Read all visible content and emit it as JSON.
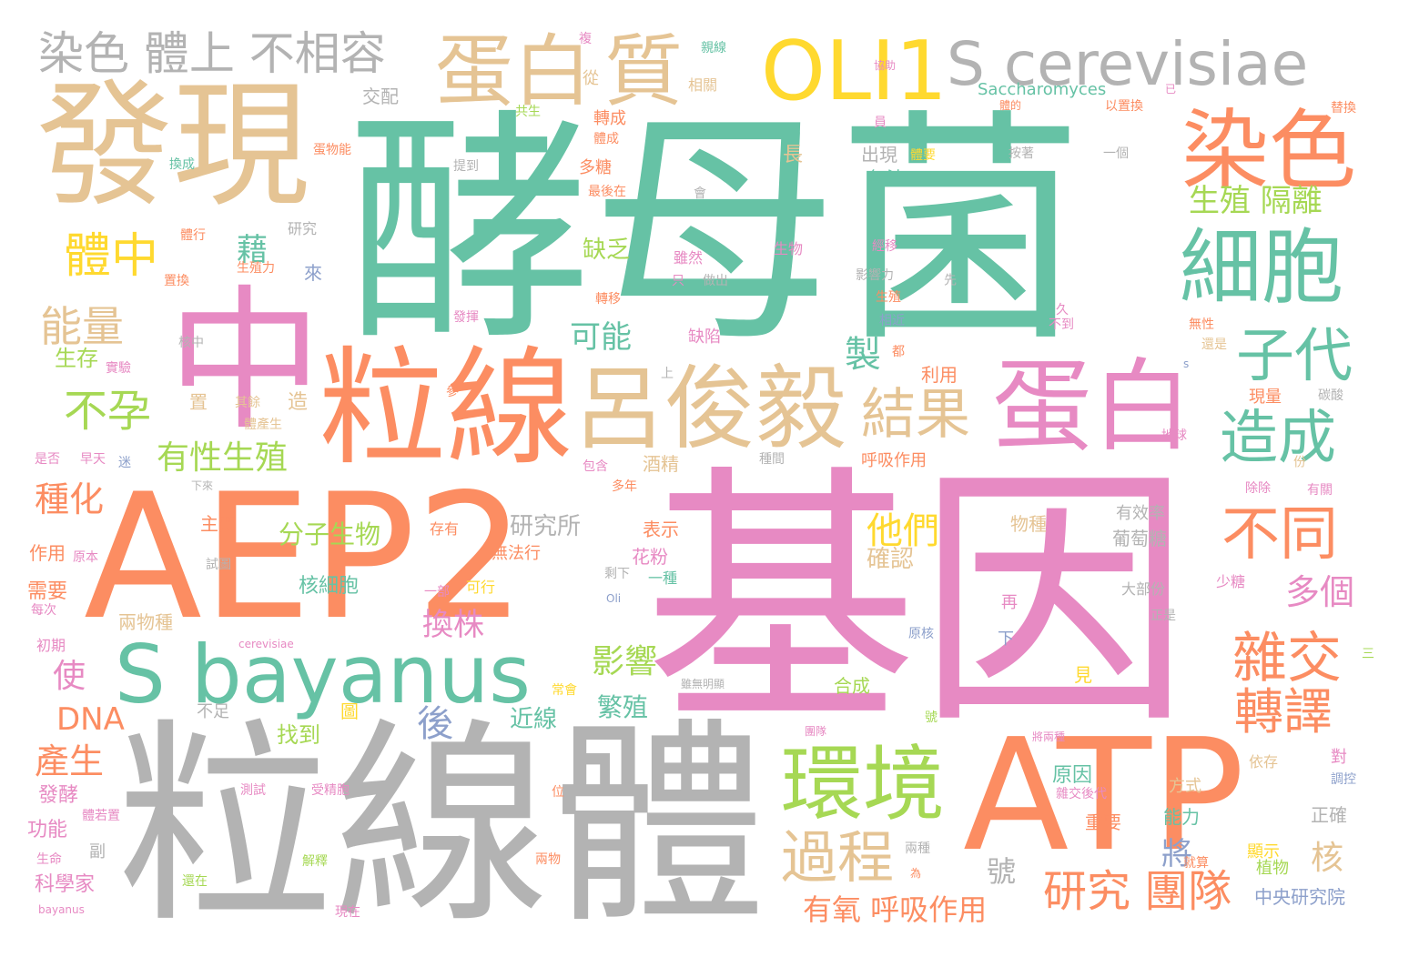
{
  "palette": {
    "teal": "#66c2a5",
    "orange": "#fc8d62",
    "pink": "#e78ac3",
    "green": "#a6d854",
    "yellow": "#ffd92f",
    "tan": "#e5c494",
    "gray": "#b3b3b3",
    "blue": "#8da0cb"
  },
  "words": [
    "酵母菌",
    "基因",
    "粒線體",
    "AEP2",
    "ATP",
    "中",
    "發現",
    "粒線",
    "蛋白",
    "呂俊毅",
    "S bayanus",
    "細胞",
    "環境",
    "染色",
    "OLI1",
    "S cerevisiae",
    "蛋白",
    "質",
    "染色 體上 不相容",
    "子代",
    "造成",
    "不同",
    "結果",
    "雜交",
    "研究 團隊",
    "過程",
    "轉譯",
    "能量",
    "體中",
    "不孕",
    "有性生殖",
    "種化",
    "換株",
    "影響",
    "他們",
    "產生",
    "DNA",
    "使",
    "後",
    "有氧 呼吸作用",
    "生殖 隔離",
    "多個",
    "可能",
    "製",
    "藉",
    "核",
    "將",
    "號",
    "生存",
    "研究所",
    "分子生物",
    "核細胞",
    "確認",
    "近線",
    "繁殖",
    "找到",
    "發酵",
    "科學家",
    "功能",
    "主要",
    "作用",
    "需要",
    "初期",
    "兩物種",
    "酒精",
    "物種",
    "葡萄糖",
    "有效率",
    "原因",
    "能力",
    "重要",
    "方式",
    "依存",
    "顯示",
    "植物",
    "中央研究院",
    "正確",
    "對",
    "調控",
    "原核",
    "下",
    "再",
    "少糖",
    "正是",
    "三",
    "見",
    "大部份",
    "呼吸作用",
    "利用",
    "缺陷",
    "雖然",
    "只",
    "做出",
    "生物",
    "無法",
    "出現",
    "長",
    "員",
    "體要",
    "按著",
    "一個",
    "Saccharomyces",
    "相關",
    "交配",
    "從",
    "複",
    "親線",
    "協助",
    "已",
    "共生",
    "轉成",
    "體成",
    "體的",
    "以置換",
    "替換",
    "提到",
    "多糖",
    "最後在",
    "會",
    "無法行",
    "存有",
    "表示",
    "花粉",
    "一種",
    "剩下",
    "一部",
    "可行",
    "圖",
    "不足",
    "雖無明顯",
    "合成",
    "常會",
    "團隊",
    "受精胞",
    "測試",
    "解釋",
    "兩物",
    "現在",
    "還在",
    "生命",
    "體若置",
    "bayanus",
    "cerevisiae",
    "來",
    "蛋物能",
    "換成",
    "體行",
    "置換",
    "核中",
    "實驗",
    "是否",
    "早天",
    "迷",
    "下來",
    "原本",
    "每次",
    "試圖",
    "上",
    "參",
    "其餘",
    "體產生",
    "造",
    "置",
    "缺乏",
    "轉移",
    "發揮",
    "生殖力",
    "研究",
    "生殖",
    "影響力",
    "經移",
    "先",
    "相近",
    "久",
    "不到",
    "都",
    "無性",
    "還是",
    "s",
    "現量",
    "碳酸",
    "地球",
    "份",
    "有關",
    "除除",
    "種間",
    "包含",
    "多年",
    "Oli",
    "將兩種",
    "雜交後代",
    "兩種",
    "為",
    "就算",
    "位",
    "副",
    "號"
  ]
}
